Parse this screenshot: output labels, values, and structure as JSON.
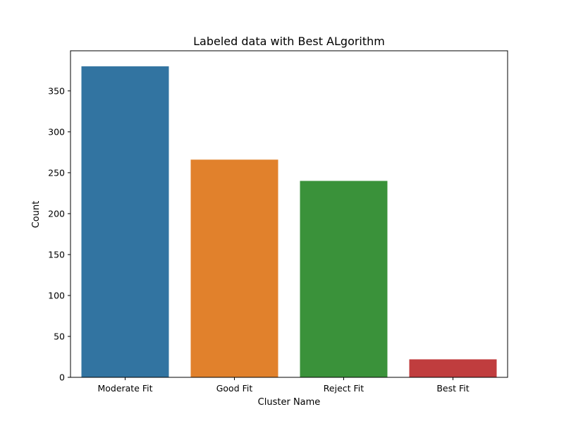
{
  "chart_data": {
    "type": "bar",
    "title": "Labeled data with Best ALgorithm",
    "xlabel": "Cluster Name",
    "ylabel": "Count",
    "categories": [
      "Moderate Fit",
      "Good Fit",
      "Reject Fit",
      "Best Fit"
    ],
    "values": [
      380,
      266,
      240,
      22
    ],
    "colors": [
      "#3274a1",
      "#e1812c",
      "#3a923a",
      "#c03d3e"
    ],
    "ylim": [
      0,
      399
    ],
    "yticks": [
      0,
      50,
      100,
      150,
      200,
      250,
      300,
      350
    ],
    "grid": false,
    "legend": "none"
  }
}
